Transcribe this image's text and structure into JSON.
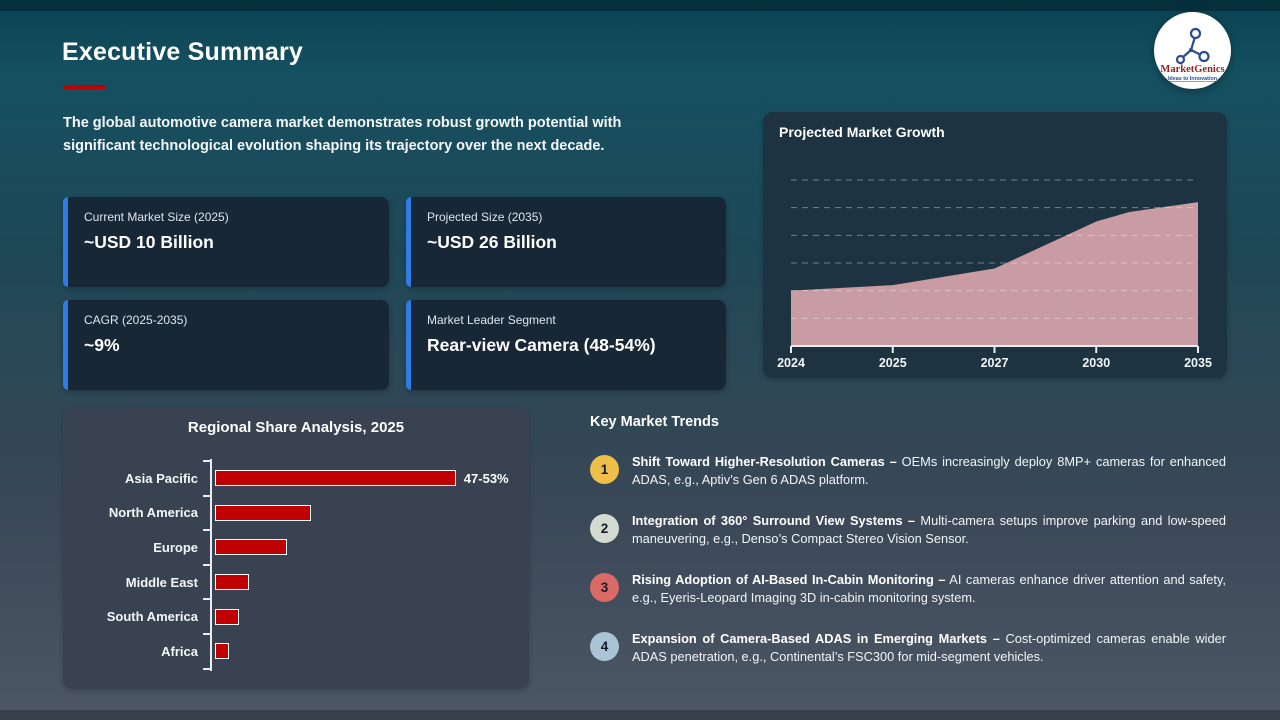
{
  "page": {
    "title": "Executive Summary",
    "intro_line1": "The global automotive camera market demonstrates robust growth potential with",
    "intro_line2": "significant technological evolution shaping its trajectory over the next decade."
  },
  "logo": {
    "brand": "MarketGenics",
    "tagline": "Ideas to Innovation"
  },
  "colors": {
    "accent_blue": "#2e7ce4",
    "rule_red": "#c00000",
    "bar_red": "#c00000",
    "area_pink": "#c99ba2",
    "growth_panel_bg": "#1d3342",
    "bar_panel_bg": "#384250",
    "card_bg": "#182735"
  },
  "stats": [
    {
      "label": "Current Market Size (2025)",
      "value": "~USD 10 Billion"
    },
    {
      "label": "Projected Size (2035)",
      "value": "~USD 26 Billion"
    },
    {
      "label": "CAGR (2025-2035)",
      "value": "~9%"
    },
    {
      "label": "Market Leader Segment",
      "value": "Rear-view Camera (48-54%)"
    }
  ],
  "chart_data": [
    {
      "type": "area",
      "title": "Projected Market Growth",
      "x_labels": [
        "2024",
        "2025",
        "2027",
        "2030",
        "2035"
      ],
      "x": [
        2024,
        2025,
        2027,
        2030,
        2035
      ],
      "values_usd_billion_est": [
        10,
        11,
        14,
        22.5,
        26
      ],
      "ylim": [
        0,
        30
      ],
      "gridlines": [
        5,
        10,
        15,
        20,
        25,
        30
      ],
      "grid_style": "dashed horizontal, no y tick labels",
      "legend": "none",
      "area_color": "#c99ba2",
      "draw_points": [
        [
          0,
          10
        ],
        [
          0.25,
          11
        ],
        [
          0.5,
          14
        ],
        [
          0.75,
          22.5
        ],
        [
          0.83,
          24.2
        ],
        [
          1,
          26
        ]
      ]
    },
    {
      "type": "bar",
      "orientation": "horizontal",
      "title": "Regional Share Analysis, 2025",
      "categories": [
        "Asia Pacific",
        "North America",
        "Europe",
        "Middle East",
        "South America",
        "Africa"
      ],
      "values_pct_est": [
        50,
        20,
        15,
        7,
        5,
        3
      ],
      "annotations": [
        {
          "category": "Asia Pacific",
          "text": "47-53%"
        }
      ],
      "xlim": [
        0,
        62.5
      ],
      "legend": "none",
      "bar_color": "#c00000",
      "bar_border": "#ffffff"
    }
  ],
  "trends": {
    "heading": "Key Market Trends",
    "items": [
      {
        "number": "1",
        "badge_color": "#eec049",
        "bold": "Shift Toward Higher-Resolution Cameras –",
        "rest": "OEMs increasingly deploy 8MP+ cameras for enhanced ADAS, e.g., Aptiv’s Gen 6 ADAS platform."
      },
      {
        "number": "2",
        "badge_color": "#d3dbd0",
        "bold": "Integration of 360° Surround View Systems –",
        "rest": "Multi-camera setups improve parking and low-speed maneuvering, e.g., Denso’s Compact Stereo Vision Sensor."
      },
      {
        "number": "3",
        "badge_color": "#d96a66",
        "bold": "Rising Adoption of AI-Based In-Cabin Monitoring –",
        "rest": "AI cameras enhance driver attention and safety, e.g., Eyeris-Leopard Imaging 3D in-cabin monitoring system."
      },
      {
        "number": "4",
        "badge_color": "#aac4d6",
        "bold": "Expansion of Camera-Based ADAS in Emerging Markets –",
        "rest": "Cost-optimized cameras enable wider ADAS penetration, e.g., Continental’s FSC300 for mid-segment vehicles."
      }
    ]
  }
}
